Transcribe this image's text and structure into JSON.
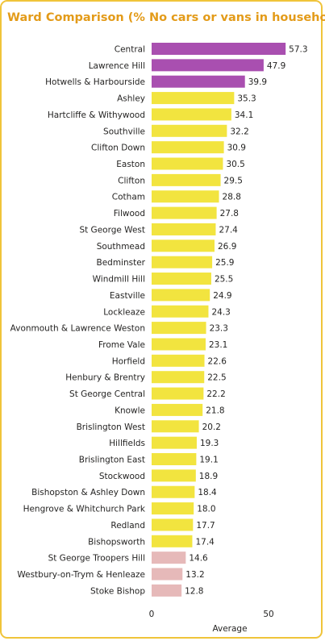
{
  "chart_data": {
    "type": "barh",
    "title": "Ward Comparison (% No cars or vans in household)",
    "categories": [
      "Central",
      "Lawrence Hill",
      "Hotwells & Harbourside",
      "Ashley",
      "Hartcliffe & Withywood",
      "Southville",
      "Clifton Down",
      "Easton",
      "Clifton",
      "Cotham",
      "Filwood",
      "St George West",
      "Southmead",
      "Bedminster",
      "Windmill Hill",
      "Eastville",
      "Lockleaze",
      "Avonmouth & Lawrence Weston",
      "Frome Vale",
      "Horfield",
      "Henbury & Brentry",
      "St George Central",
      "Knowle",
      "Brislington West",
      "Hillfields",
      "Brislington East",
      "Stockwood",
      "Bishopston & Ashley Down",
      "Hengrove & Whitchurch Park",
      "Redland",
      "Bishopsworth",
      "St George Troopers Hill",
      "Westbury-on-Trym & Henleaze",
      "Stoke Bishop"
    ],
    "values": [
      57.3,
      47.9,
      39.9,
      35.3,
      34.1,
      32.2,
      30.9,
      30.5,
      29.5,
      28.8,
      27.8,
      27.4,
      26.9,
      25.9,
      25.5,
      24.9,
      24.3,
      23.3,
      23.1,
      22.6,
      22.5,
      22.2,
      21.8,
      20.2,
      19.3,
      19.1,
      18.9,
      18.4,
      18.0,
      17.7,
      17.4,
      14.6,
      13.2,
      12.8
    ],
    "value_labels": [
      "57.3",
      "47.9",
      "39.9",
      "35.3",
      "34.1",
      "32.2",
      "30.9",
      "30.5",
      "29.5",
      "28.8",
      "27.8",
      "27.4",
      "26.9",
      "25.9",
      "25.5",
      "24.9",
      "24.3",
      "23.3",
      "23.1",
      "22.6",
      "22.5",
      "22.2",
      "21.8",
      "20.2",
      "19.3",
      "19.1",
      "18.9",
      "18.4",
      "18.0",
      "17.7",
      "17.4",
      "14.6",
      "13.2",
      "12.8"
    ],
    "colors": [
      "#a94fb0",
      "#a94fb0",
      "#a94fb0",
      "#f2e43f",
      "#f2e43f",
      "#f2e43f",
      "#f2e43f",
      "#f2e43f",
      "#f2e43f",
      "#f2e43f",
      "#f2e43f",
      "#f2e43f",
      "#f2e43f",
      "#f2e43f",
      "#f2e43f",
      "#f2e43f",
      "#f2e43f",
      "#f2e43f",
      "#f2e43f",
      "#f2e43f",
      "#f2e43f",
      "#f2e43f",
      "#f2e43f",
      "#f2e43f",
      "#f2e43f",
      "#f2e43f",
      "#f2e43f",
      "#f2e43f",
      "#f2e43f",
      "#f2e43f",
      "#f2e43f",
      "#e6b9b9",
      "#e6b9b9",
      "#e6b9b9"
    ],
    "xlim": [
      0,
      60
    ],
    "xticks": [
      0,
      50
    ],
    "xlabel": "Average"
  }
}
